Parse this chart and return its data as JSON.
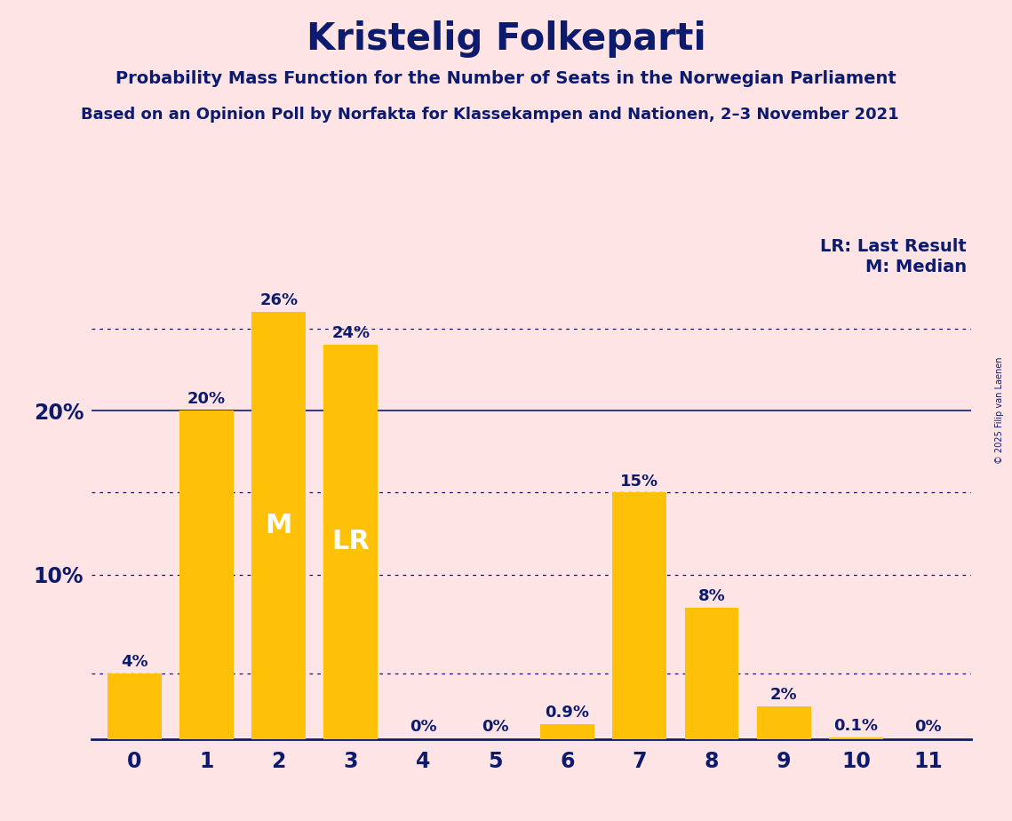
{
  "title": "Kristelig Folkeparti",
  "subtitle1": "Probability Mass Function for the Number of Seats in the Norwegian Parliament",
  "subtitle2": "Based on an Opinion Poll by Norfakta for Klassekampen and Nationen, 2–3 November 2021",
  "copyright": "© 2025 Filip van Laenen",
  "categories": [
    0,
    1,
    2,
    3,
    4,
    5,
    6,
    7,
    8,
    9,
    10,
    11
  ],
  "values": [
    4,
    20,
    26,
    24,
    0,
    0,
    0.9,
    15,
    8,
    2,
    0.1,
    0
  ],
  "labels": [
    "4%",
    "20%",
    "26%",
    "24%",
    "0%",
    "0%",
    "0.9%",
    "15%",
    "8%",
    "2%",
    "0.1%",
    "0%"
  ],
  "bar_color": "#FFC107",
  "background_color": "#FFE4E6",
  "text_color": "#0D1B6E",
  "median_bar": 2,
  "lr_bar": 3,
  "median_label": "M",
  "lr_label": "LR",
  "legend_lr": "LR: Last Result",
  "legend_m": "M: Median",
  "ylim": [
    0,
    29
  ],
  "dotted_lines": [
    4,
    10,
    15,
    25
  ],
  "solid_line": 20,
  "ytick_positions": [
    10,
    20
  ],
  "ytick_labels": [
    "10%",
    "20%"
  ]
}
